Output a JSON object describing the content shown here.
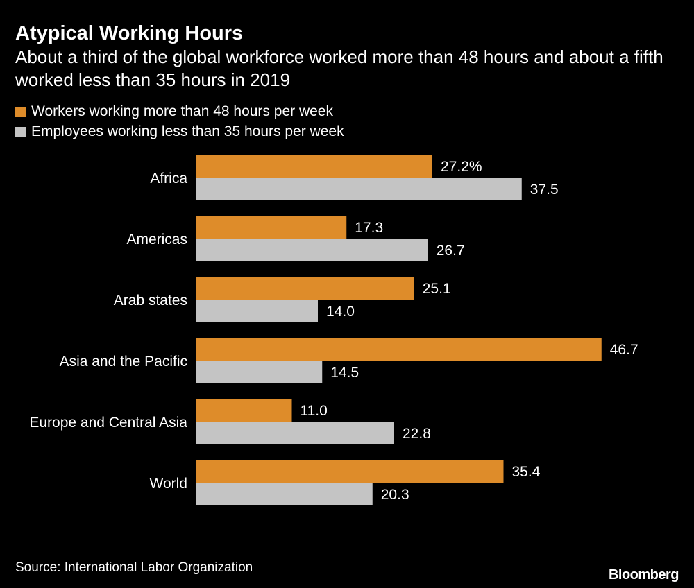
{
  "title": "Atypical Working Hours",
  "subtitle": "About a third of the global workforce worked more than 48 hours and about a fifth worked less than 35 hours in 2019",
  "source": "Source: International Labor Organization",
  "logo": "Bloomberg",
  "colors": {
    "series1": "#DE8C2A",
    "series2": "#C4C4C4"
  },
  "chart_data": {
    "type": "bar",
    "orientation": "horizontal",
    "title": "Atypical Working Hours",
    "categories": [
      "Africa",
      "Americas",
      "Arab states",
      "Asia and the Pacific",
      "Europe and Central Asia",
      "World"
    ],
    "series": [
      {
        "name": "Workers working more than 48 hours per week",
        "values": [
          27.2,
          17.3,
          25.1,
          46.7,
          11.0,
          35.4
        ],
        "labels": [
          "27.2%",
          "17.3",
          "25.1",
          "46.7",
          "11.0",
          "35.4"
        ]
      },
      {
        "name": "Employees working less than 35 hours per week",
        "values": [
          37.5,
          26.7,
          14.0,
          14.5,
          22.8,
          20.3
        ],
        "labels": [
          "37.5",
          "26.7",
          "14.0",
          "14.5",
          "22.8",
          "20.3"
        ]
      }
    ],
    "xlim": [
      0,
      50
    ],
    "grid": false,
    "legend": "top-left"
  }
}
